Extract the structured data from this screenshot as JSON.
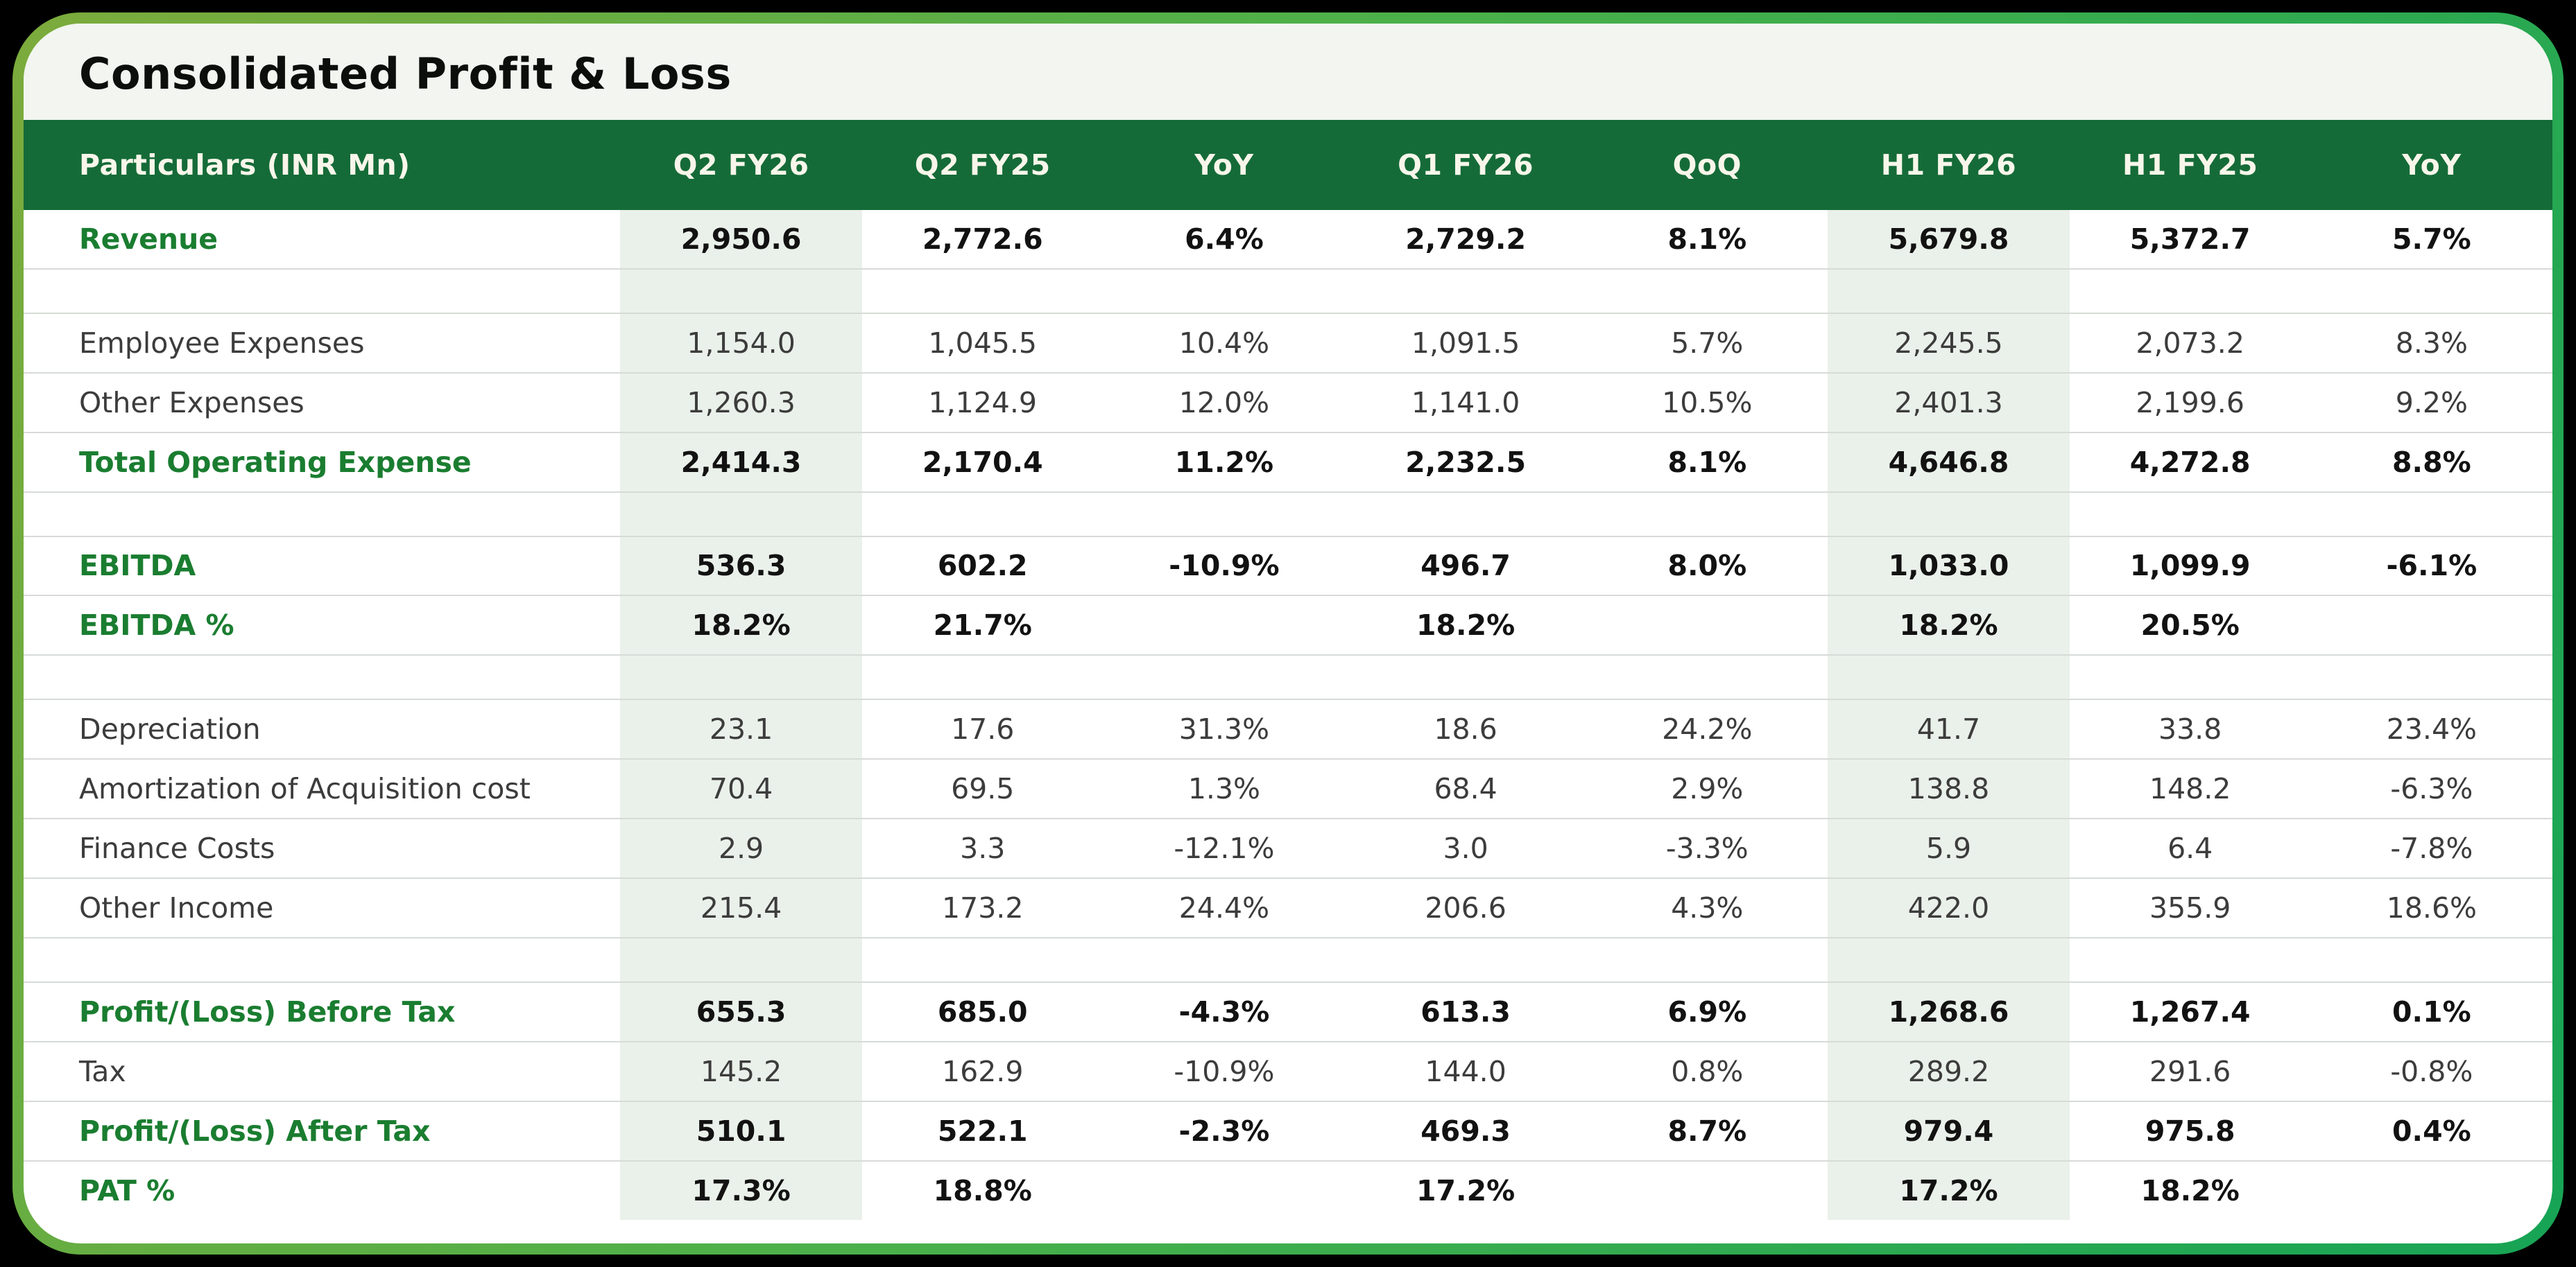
{
  "title": "Consolidated Profit & Loss",
  "colors": {
    "header_bg": "#156b38",
    "header_text": "#f8f6ea",
    "accent_green_label": "#1a7d30",
    "card_border_gradient_start": "#7cab3c",
    "card_border_gradient_end": "#17a455",
    "title_bar_bg": "#f2f5f0",
    "highlight_column_bg": "#eaf0ea",
    "outer_background": "#000000"
  },
  "table": {
    "columns": [
      {
        "label": "Particulars (INR Mn)",
        "highlight": false
      },
      {
        "label": "Q2 FY26",
        "highlight": true
      },
      {
        "label": "Q2 FY25",
        "highlight": false
      },
      {
        "label": "YoY",
        "highlight": false
      },
      {
        "label": "Q1 FY26",
        "highlight": false
      },
      {
        "label": "QoQ",
        "highlight": false
      },
      {
        "label": "H1 FY26",
        "highlight": true
      },
      {
        "label": "H1 FY25",
        "highlight": false
      },
      {
        "label": "YoY",
        "highlight": false
      }
    ],
    "rows": [
      {
        "type": "data",
        "style": "emphasis",
        "label": "Revenue",
        "values": [
          "2,950.6",
          "2,772.6",
          "6.4%",
          "2,729.2",
          "8.1%",
          "5,679.8",
          "5,372.7",
          "5.7%"
        ]
      },
      {
        "type": "spacer"
      },
      {
        "type": "data",
        "style": "normal",
        "label": "Employee Expenses",
        "values": [
          "1,154.0",
          "1,045.5",
          "10.4%",
          "1,091.5",
          "5.7%",
          "2,245.5",
          "2,073.2",
          "8.3%"
        ]
      },
      {
        "type": "data",
        "style": "normal",
        "label": "Other Expenses",
        "values": [
          "1,260.3",
          "1,124.9",
          "12.0%",
          "1,141.0",
          "10.5%",
          "2,401.3",
          "2,199.6",
          "9.2%"
        ]
      },
      {
        "type": "data",
        "style": "emphasis",
        "label": "Total Operating Expense",
        "values": [
          "2,414.3",
          "2,170.4",
          "11.2%",
          "2,232.5",
          "8.1%",
          "4,646.8",
          "4,272.8",
          "8.8%"
        ]
      },
      {
        "type": "spacer"
      },
      {
        "type": "data",
        "style": "emphasis",
        "label": "EBITDA",
        "values": [
          "536.3",
          "602.2",
          "-10.9%",
          "496.7",
          "8.0%",
          "1,033.0",
          "1,099.9",
          "-6.1%"
        ]
      },
      {
        "type": "data",
        "style": "emphasis",
        "label": "EBITDA %",
        "values": [
          "18.2%",
          "21.7%",
          "",
          "18.2%",
          "",
          "18.2%",
          "20.5%",
          ""
        ]
      },
      {
        "type": "spacer"
      },
      {
        "type": "data",
        "style": "normal",
        "label": "Depreciation",
        "values": [
          "23.1",
          "17.6",
          "31.3%",
          "18.6",
          "24.2%",
          "41.7",
          "33.8",
          "23.4%"
        ]
      },
      {
        "type": "data",
        "style": "normal",
        "label": "Amortization of Acquisition cost",
        "values": [
          "70.4",
          "69.5",
          "1.3%",
          "68.4",
          "2.9%",
          "138.8",
          "148.2",
          "-6.3%"
        ]
      },
      {
        "type": "data",
        "style": "normal",
        "label": "Finance Costs",
        "values": [
          "2.9",
          "3.3",
          "-12.1%",
          "3.0",
          "-3.3%",
          "5.9",
          "6.4",
          "-7.8%"
        ]
      },
      {
        "type": "data",
        "style": "normal",
        "label": "Other Income",
        "values": [
          "215.4",
          "173.2",
          "24.4%",
          "206.6",
          "4.3%",
          "422.0",
          "355.9",
          "18.6%"
        ]
      },
      {
        "type": "spacer"
      },
      {
        "type": "data",
        "style": "emphasis",
        "label": "Profit/(Loss) Before Tax",
        "values": [
          "655.3",
          "685.0",
          "-4.3%",
          "613.3",
          "6.9%",
          "1,268.6",
          "1,267.4",
          "0.1%"
        ]
      },
      {
        "type": "data",
        "style": "normal",
        "label": "Tax",
        "values": [
          "145.2",
          "162.9",
          "-10.9%",
          "144.0",
          "0.8%",
          "289.2",
          "291.6",
          "-0.8%"
        ]
      },
      {
        "type": "data",
        "style": "emphasis",
        "label": "Profit/(Loss) After Tax",
        "values": [
          "510.1",
          "522.1",
          "-2.3%",
          "469.3",
          "8.7%",
          "979.4",
          "975.8",
          "0.4%"
        ]
      },
      {
        "type": "data",
        "style": "emphasis",
        "label": "PAT %",
        "values": [
          "17.3%",
          "18.8%",
          "",
          "17.2%",
          "",
          "17.2%",
          "18.2%",
          ""
        ]
      }
    ]
  }
}
